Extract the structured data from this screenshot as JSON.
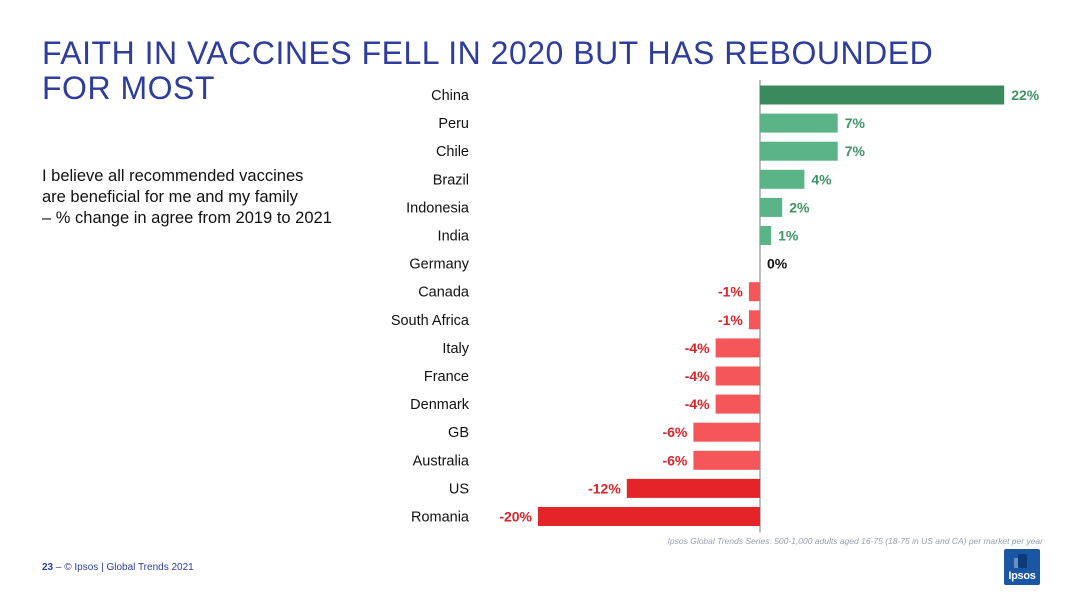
{
  "slide": {
    "title": "FAITH IN VACCINES FELL IN 2020 BUT HAS REBOUNDED FOR MOST",
    "subtitle_lines": [
      "I believe all recommended vaccines",
      "are beneficial for me and my family",
      "– % change in agree from 2019 to 2021"
    ],
    "source": "Ipsos Global Trends Series: 500-1,000 adults aged 16-75 (18-75 in US and CA) per market per year",
    "footer_page": "23",
    "footer_text": " –  © Ipsos | Global Trends 2021",
    "logo_text": "Ipsos"
  },
  "colors": {
    "title": "#2e3d9c",
    "positive_top": "#3b8a5e",
    "positive": "#5ab487",
    "positive_label": "#3f9466",
    "zero_label": "#111111",
    "negative": "#f5565a",
    "negative_strong": "#e5242a",
    "negative_label": "#d8262b",
    "axis": "#7a7a7a"
  },
  "chart_data": {
    "type": "bar",
    "orientation": "horizontal",
    "categories": [
      "China",
      "Peru",
      "Chile",
      "Brazil",
      "Indonesia",
      "India",
      "Germany",
      "Canada",
      "South Africa",
      "Italy",
      "France",
      "Denmark",
      "GB",
      "Australia",
      "US",
      "Romania"
    ],
    "values": [
      22,
      7,
      7,
      4,
      2,
      1,
      0,
      -1,
      -1,
      -4,
      -4,
      -4,
      -6,
      -6,
      -12,
      -20
    ],
    "value_labels": [
      "22%",
      "7%",
      "7%",
      "4%",
      "2%",
      "1%",
      "0%",
      "-1%",
      "-1%",
      "-4%",
      "-4%",
      "-4%",
      "-6%",
      "-6%",
      "-12%",
      "-20%"
    ],
    "xlim": [
      -20,
      22
    ],
    "xlabel": "",
    "ylabel": "",
    "grid": false,
    "legend": "none"
  }
}
